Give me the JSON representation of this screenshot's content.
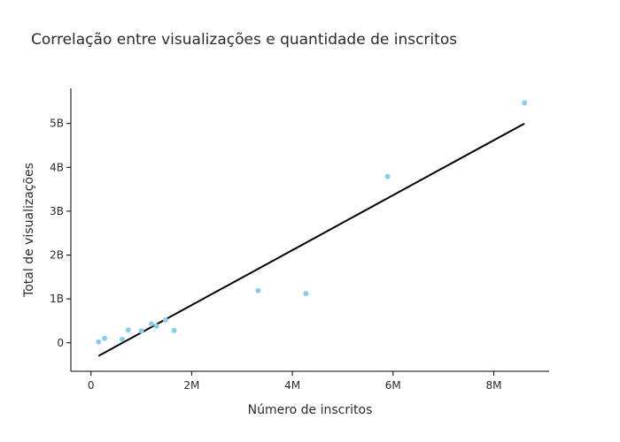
{
  "chart_data": {
    "type": "scatter",
    "title": "Correlação entre visualizações e quantidade de inscritos",
    "xlabel": "Número de inscritos",
    "ylabel": "Total de visualizações",
    "xlim": [
      -400000,
      9100000
    ],
    "ylim": [
      -650000000,
      5800000000
    ],
    "x_ticks": [
      0,
      2000000,
      4000000,
      6000000,
      8000000
    ],
    "x_tick_labels": [
      "0",
      "2M",
      "4M",
      "6M",
      "8M"
    ],
    "y_ticks": [
      0,
      1000000000,
      2000000000,
      3000000000,
      4000000000,
      5000000000
    ],
    "y_tick_labels": [
      "0",
      "1B",
      "2B",
      "3B",
      "4B",
      "5B"
    ],
    "grid": false,
    "point_color": "#87ceeb",
    "line_color": "#000000",
    "points": [
      {
        "x": 150000,
        "y": 20000000
      },
      {
        "x": 270000,
        "y": 100000000
      },
      {
        "x": 620000,
        "y": 80000000
      },
      {
        "x": 740000,
        "y": 290000000
      },
      {
        "x": 1000000,
        "y": 270000000
      },
      {
        "x": 1200000,
        "y": 430000000
      },
      {
        "x": 1300000,
        "y": 380000000
      },
      {
        "x": 1480000,
        "y": 520000000
      },
      {
        "x": 1650000,
        "y": 280000000
      },
      {
        "x": 3320000,
        "y": 1190000000
      },
      {
        "x": 4270000,
        "y": 1120000000
      },
      {
        "x": 5890000,
        "y": 3790000000
      },
      {
        "x": 8610000,
        "y": 5470000000
      }
    ],
    "trendline": {
      "x": [
        150000,
        8610000
      ],
      "y": [
        -300000000,
        5000000000
      ]
    }
  }
}
